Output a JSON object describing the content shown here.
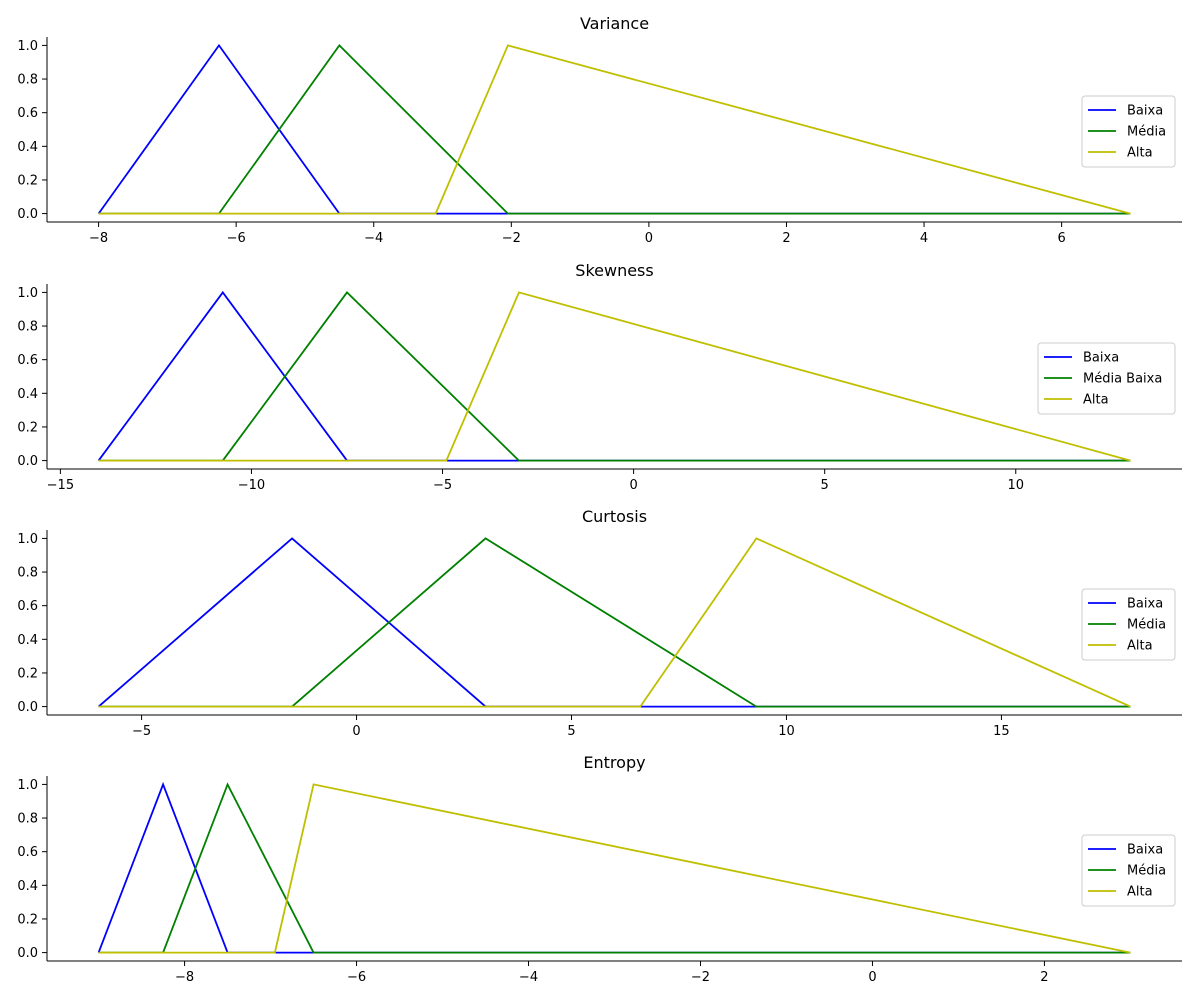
{
  "chart_data": [
    {
      "type": "line",
      "title": "Variance",
      "xlim": [
        -8.75,
        7.75
      ],
      "ylim": [
        -0.05,
        1.05
      ],
      "xticks": [
        -8,
        -6,
        -4,
        -2,
        0,
        2,
        4,
        6
      ],
      "xtick_labels": [
        "−8",
        "−6",
        "−4",
        "−2",
        "0",
        "2",
        "4",
        "6"
      ],
      "yticks": [
        0.0,
        0.2,
        0.4,
        0.6,
        0.8,
        1.0
      ],
      "ytick_labels": [
        "0.0",
        "0.2",
        "0.4",
        "0.6",
        "0.8",
        "1.0"
      ],
      "legend_position": "right",
      "series": [
        {
          "name": "Baixa",
          "color": "#0000ff",
          "x": [
            -8,
            -6.25,
            -4.5,
            7
          ],
          "y": [
            0,
            1,
            0,
            0
          ]
        },
        {
          "name": "Média",
          "color": "#008000",
          "x": [
            -8,
            -6.25,
            -4.5,
            -2.05,
            7
          ],
          "y": [
            0,
            0,
            1,
            0,
            0
          ]
        },
        {
          "name": "Alta",
          "color": "#bfbf00",
          "x": [
            -8,
            -3.1,
            -2.05,
            7
          ],
          "y": [
            0,
            0,
            1,
            0
          ]
        }
      ]
    },
    {
      "type": "line",
      "title": "Skewness",
      "xlim": [
        -15.35,
        14.35
      ],
      "ylim": [
        -0.05,
        1.05
      ],
      "xticks": [
        -15,
        -10,
        -5,
        0,
        5,
        10
      ],
      "xtick_labels": [
        "−15",
        "−10",
        "−5",
        "0",
        "5",
        "10"
      ],
      "yticks": [
        0.0,
        0.2,
        0.4,
        0.6,
        0.8,
        1.0
      ],
      "ytick_labels": [
        "0.0",
        "0.2",
        "0.4",
        "0.6",
        "0.8",
        "1.0"
      ],
      "legend_position": "right",
      "series": [
        {
          "name": "Baixa",
          "color": "#0000ff",
          "x": [
            -14,
            -10.75,
            -7.5,
            13
          ],
          "y": [
            0,
            1,
            0,
            0
          ]
        },
        {
          "name": "Média Baixa",
          "color": "#008000",
          "x": [
            -14,
            -10.75,
            -7.5,
            -3,
            13
          ],
          "y": [
            0,
            0,
            1,
            0,
            0
          ]
        },
        {
          "name": "Alta",
          "color": "#bfbf00",
          "x": [
            -14,
            -4.9,
            -3,
            13
          ],
          "y": [
            0,
            0,
            1,
            0
          ]
        }
      ]
    },
    {
      "type": "line",
      "title": "Curtosis",
      "xlim": [
        -7.2,
        19.2
      ],
      "ylim": [
        -0.05,
        1.05
      ],
      "xticks": [
        -5,
        0,
        5,
        10,
        15
      ],
      "xtick_labels": [
        "−5",
        "0",
        "5",
        "10",
        "15"
      ],
      "yticks": [
        0.0,
        0.2,
        0.4,
        0.6,
        0.8,
        1.0
      ],
      "ytick_labels": [
        "0.0",
        "0.2",
        "0.4",
        "0.6",
        "0.8",
        "1.0"
      ],
      "legend_position": "right",
      "series": [
        {
          "name": "Baixa",
          "color": "#0000ff",
          "x": [
            -6,
            -1.5,
            3,
            18
          ],
          "y": [
            0,
            1,
            0,
            0
          ]
        },
        {
          "name": "Média",
          "color": "#008000",
          "x": [
            -6,
            -1.5,
            3,
            9.3,
            18
          ],
          "y": [
            0,
            0,
            1,
            0,
            0
          ]
        },
        {
          "name": "Alta",
          "color": "#bfbf00",
          "x": [
            -6,
            6.6,
            9.3,
            18
          ],
          "y": [
            0,
            0,
            1,
            0
          ]
        }
      ]
    },
    {
      "type": "line",
      "title": "Entropy",
      "xlim": [
        -9.6,
        3.6
      ],
      "ylim": [
        -0.05,
        1.05
      ],
      "xticks": [
        -8,
        -6,
        -4,
        -2,
        0,
        2
      ],
      "xtick_labels": [
        "−8",
        "−6",
        "−4",
        "−2",
        "0",
        "2"
      ],
      "yticks": [
        0.0,
        0.2,
        0.4,
        0.6,
        0.8,
        1.0
      ],
      "ytick_labels": [
        "0.0",
        "0.2",
        "0.4",
        "0.6",
        "0.8",
        "1.0"
      ],
      "legend_position": "right",
      "series": [
        {
          "name": "Baixa",
          "color": "#0000ff",
          "x": [
            -9,
            -8.25,
            -7.5,
            3
          ],
          "y": [
            0,
            1,
            0,
            0
          ]
        },
        {
          "name": "Média",
          "color": "#008000",
          "x": [
            -9,
            -8.25,
            -7.5,
            -6.5,
            3
          ],
          "y": [
            0,
            0,
            1,
            0,
            0
          ]
        },
        {
          "name": "Alta",
          "color": "#bfbf00",
          "x": [
            -9,
            -6.95,
            -6.5,
            3
          ],
          "y": [
            0,
            0,
            1,
            0
          ]
        }
      ]
    }
  ]
}
